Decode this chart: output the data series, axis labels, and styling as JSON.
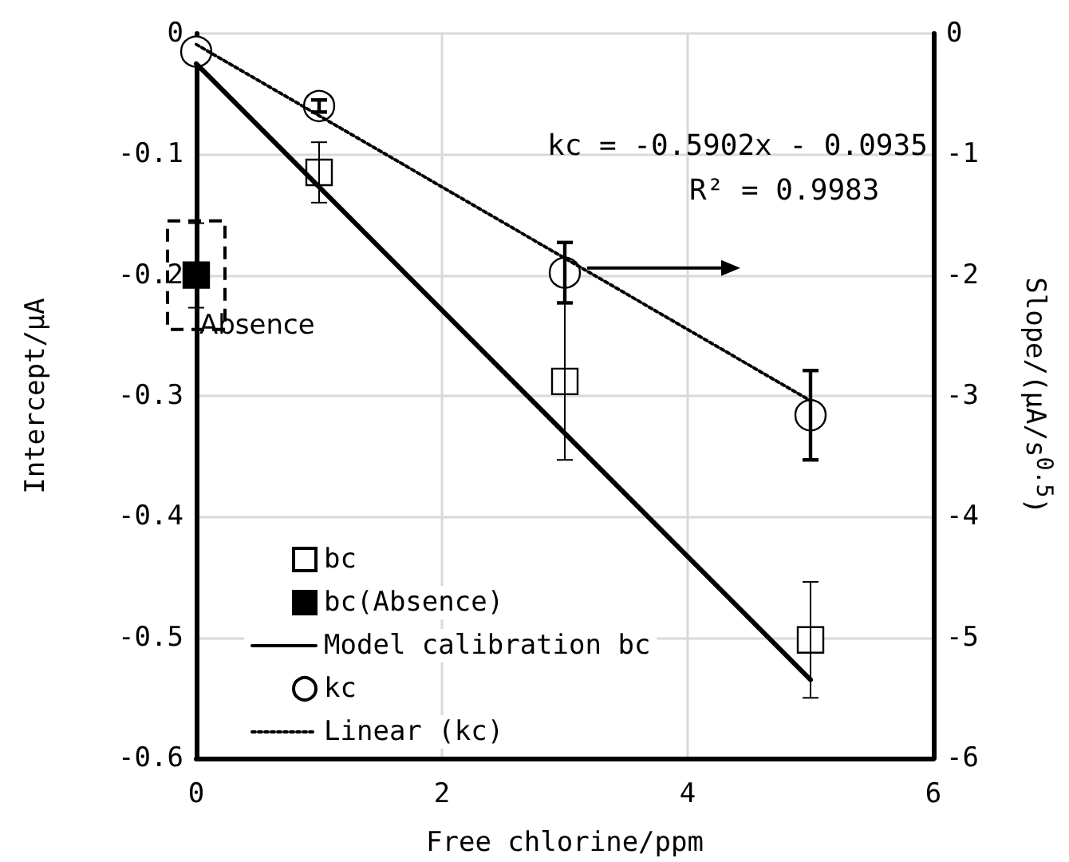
{
  "chart_data": {
    "type": "scatter",
    "xlabel": "Free chlorine/ppm",
    "ylabel": "Intercept/µA",
    "y2label": "Slope/(µA/s$^{0.5}$)",
    "xlim": [
      0,
      6
    ],
    "xticks": [
      0,
      2,
      4,
      6
    ],
    "ylim": [
      -0.6,
      0
    ],
    "yticks": [
      0,
      -0.1,
      -0.2,
      -0.3,
      -0.4,
      -0.5,
      -0.6
    ],
    "y2lim": [
      -6,
      0
    ],
    "y2ticks": [
      0,
      -1,
      -2,
      -3,
      -4,
      -5,
      -6
    ],
    "grid": true,
    "legend": "bottom left",
    "annotations": [
      {
        "text": "Absence",
        "x": 0,
        "y": -0.2
      },
      "kc = -0.5902x - 0.0935",
      "R² = 0.9983"
    ],
    "series": [
      {
        "name": "bc",
        "marker": "square",
        "color": "#ffffff",
        "x": [
          1,
          3,
          5
        ],
        "values": [
          -0.115,
          -0.288,
          -0.502
        ],
        "errors": [
          0.025,
          0.065,
          0.048
        ]
      },
      {
        "name": "bc(Absence)",
        "marker": "square",
        "color": "#000000",
        "x": [
          0
        ],
        "values": [
          -0.2
        ],
        "errors": [
          [
            -0.227,
            -0.157
          ]
        ]
      },
      {
        "name": "Model calibration bc",
        "type": "line",
        "marker": "none",
        "line_style": "solid",
        "color": "#000000",
        "x": [
          0,
          5
        ],
        "values": [
          -0.025,
          -0.535
        ]
      },
      {
        "name": "kc",
        "axis": "y2",
        "marker": "circle",
        "color": "#ffffff",
        "x": [
          0,
          1,
          3,
          5
        ],
        "values": [
          -0.15,
          -0.6,
          -1.98,
          -3.16
        ],
        "errors": [
          null,
          0.05,
          0.25,
          0.37
        ]
      },
      {
        "name": "Linear (kc)",
        "type": "line",
        "axis": "y2",
        "marker": "none",
        "line_style": "dotted",
        "color": "#000000",
        "x": [
          0,
          5
        ],
        "values": [
          -0.09,
          -3.04
        ]
      }
    ]
  }
}
